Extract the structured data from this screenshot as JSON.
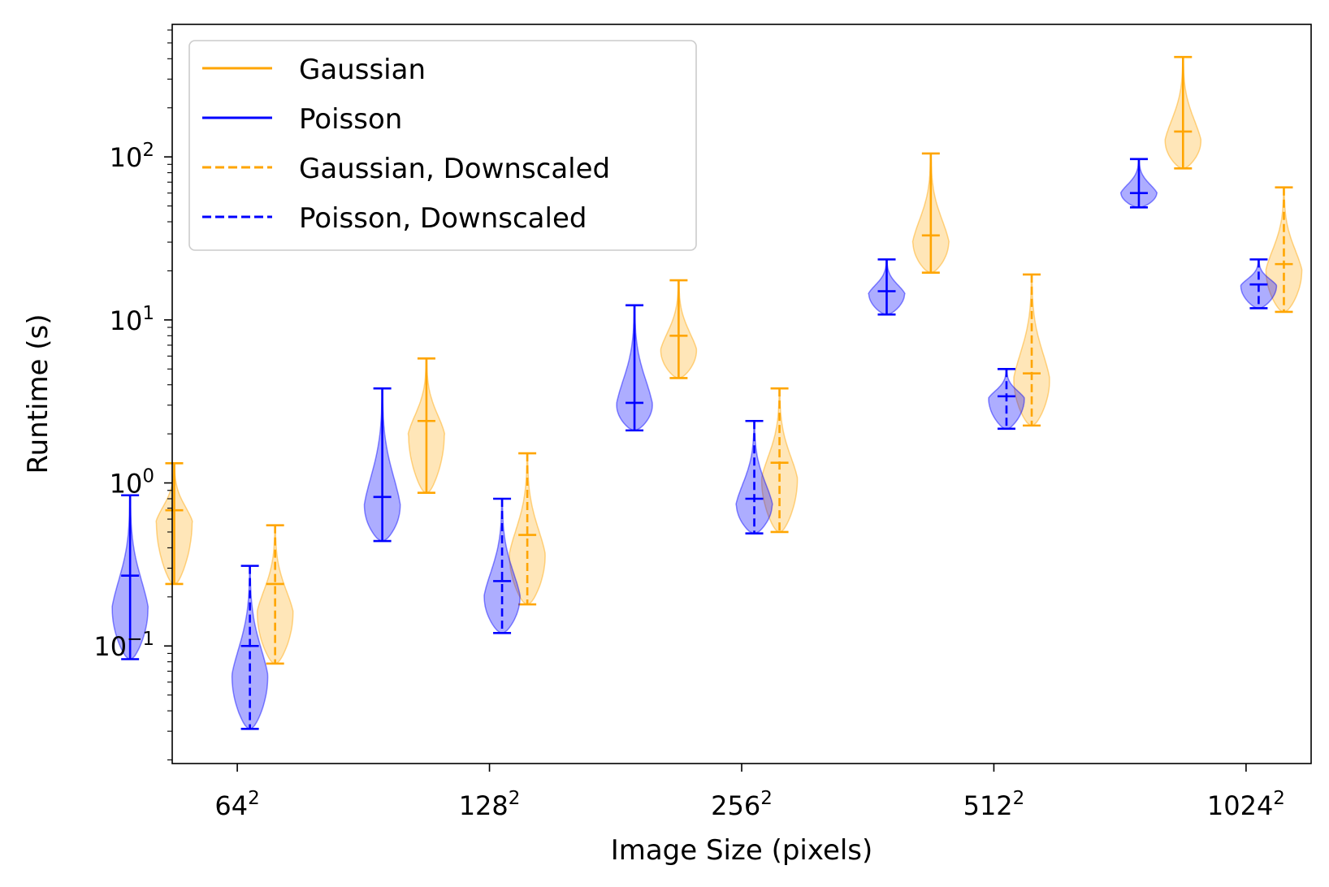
{
  "chart_data": {
    "type": "violin",
    "xlabel": "Image Size (pixels)",
    "ylabel": "Runtime (s)",
    "yscale": "log",
    "ylim": [
      0.019,
      650
    ],
    "grid": false,
    "legend_position": "top-left",
    "categories": [
      {
        "base": "64",
        "exp": "2"
      },
      {
        "base": "128",
        "exp": "2"
      },
      {
        "base": "256",
        "exp": "2"
      },
      {
        "base": "512",
        "exp": "2"
      },
      {
        "base": "1024",
        "exp": "2"
      }
    ],
    "yticks": [
      {
        "value": 0.1,
        "base": "10",
        "exp": "−1"
      },
      {
        "value": 1,
        "base": "10",
        "exp": "0"
      },
      {
        "value": 10,
        "base": "10",
        "exp": "1"
      },
      {
        "value": 100,
        "base": "10",
        "exp": "2"
      }
    ],
    "series": [
      {
        "name": "Gaussian",
        "color": "#ffa500",
        "linestyle": "solid",
        "offset": -0.5,
        "stats": [
          {
            "min": 0.24,
            "median": 0.68,
            "max": 1.32,
            "peak": 0.58
          },
          {
            "min": 0.87,
            "median": 2.4,
            "max": 5.8,
            "peak": 2.0
          },
          {
            "min": 4.4,
            "median": 8.0,
            "max": 17.5,
            "peak": 6.5
          },
          {
            "min": 19.5,
            "median": 33.0,
            "max": 105,
            "peak": 30
          },
          {
            "min": 85,
            "median": 143,
            "max": 410,
            "peak": 125
          }
        ]
      },
      {
        "name": "Poisson",
        "color": "#0000ff",
        "linestyle": "solid",
        "offset": -0.85,
        "stats": [
          {
            "min": 0.083,
            "median": 0.27,
            "max": 0.84,
            "peak": 0.17
          },
          {
            "min": 0.44,
            "median": 0.82,
            "max": 3.8,
            "peak": 0.72
          },
          {
            "min": 2.1,
            "median": 3.1,
            "max": 12.3,
            "peak": 3.0
          },
          {
            "min": 10.8,
            "median": 15.0,
            "max": 23.5,
            "peak": 14.5
          },
          {
            "min": 49,
            "median": 60,
            "max": 97,
            "peak": 60
          }
        ]
      },
      {
        "name": "Gaussian, Downscaled",
        "color": "#ffa500",
        "linestyle": "dashed",
        "offset": 0.3,
        "stats": [
          {
            "min": 0.078,
            "median": 0.24,
            "max": 0.55,
            "peak": 0.16
          },
          {
            "min": 0.18,
            "median": 0.48,
            "max": 1.52,
            "peak": 0.36
          },
          {
            "min": 0.5,
            "median": 1.33,
            "max": 3.8,
            "peak": 1.05
          },
          {
            "min": 2.25,
            "median": 4.7,
            "max": 19.0,
            "peak": 4.3
          },
          {
            "min": 11.2,
            "median": 22.0,
            "max": 65,
            "peak": 20
          }
        ]
      },
      {
        "name": "Poisson, Downscaled",
        "color": "#0000ff",
        "linestyle": "dashed",
        "offset": 0.1,
        "stats": [
          {
            "min": 0.031,
            "median": 0.1,
            "max": 0.31,
            "peak": 0.065
          },
          {
            "min": 0.12,
            "median": 0.25,
            "max": 0.8,
            "peak": 0.2
          },
          {
            "min": 0.49,
            "median": 0.8,
            "max": 2.4,
            "peak": 0.74
          },
          {
            "min": 2.15,
            "median": 3.4,
            "max": 5.0,
            "peak": 3.3
          },
          {
            "min": 11.8,
            "median": 16.5,
            "max": 23.5,
            "peak": 16.2
          }
        ]
      }
    ]
  }
}
